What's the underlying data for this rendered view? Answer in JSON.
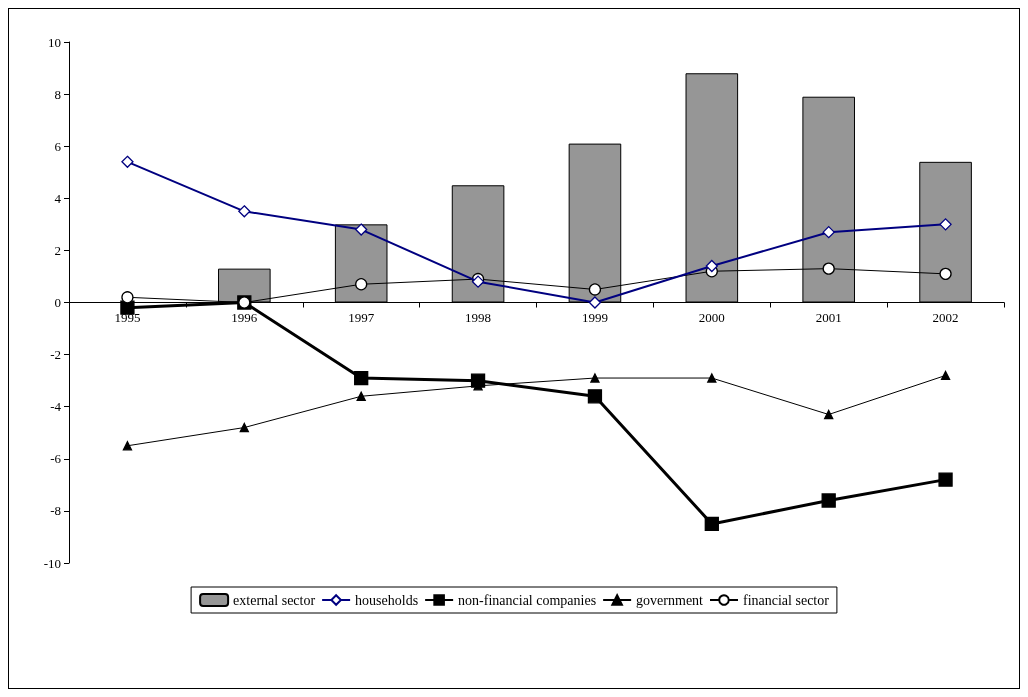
{
  "chart_data": {
    "type": "bar",
    "categories": [
      "1995",
      "1996",
      "1997",
      "1998",
      "1999",
      "2000",
      "2001",
      "2002"
    ],
    "series": [
      {
        "name": "external sector",
        "color": "#969696",
        "values": [
          null,
          1.3,
          3.0,
          4.5,
          6.1,
          8.8,
          7.9,
          5.4
        ]
      },
      {
        "name": "households",
        "type": "line",
        "color": "#000080",
        "marker": "diamond",
        "values": [
          5.4,
          3.5,
          2.8,
          0.8,
          0.0,
          1.4,
          2.7,
          3.0
        ]
      },
      {
        "name": "non-financial companies",
        "type": "line",
        "color": "#000000",
        "marker": "square",
        "values": [
          -0.2,
          0.0,
          -2.9,
          -3.0,
          -3.6,
          -8.5,
          -7.6,
          -6.8
        ]
      },
      {
        "name": "government",
        "type": "line",
        "color": "#000000",
        "marker": "triangle",
        "values": [
          -5.5,
          -4.8,
          -3.6,
          -3.2,
          -2.9,
          -2.9,
          -4.3,
          -2.8
        ]
      },
      {
        "name": "financial sector",
        "type": "line",
        "color": "#000000",
        "marker": "circle",
        "values": [
          0.2,
          0.0,
          0.7,
          0.9,
          0.5,
          1.2,
          1.3,
          1.1
        ]
      }
    ],
    "ylim": [
      -10,
      10
    ],
    "yticks": [
      -10,
      -8,
      -6,
      -4,
      -2,
      0,
      2,
      4,
      6,
      8,
      10
    ],
    "grid": false,
    "legend": "bottom"
  }
}
